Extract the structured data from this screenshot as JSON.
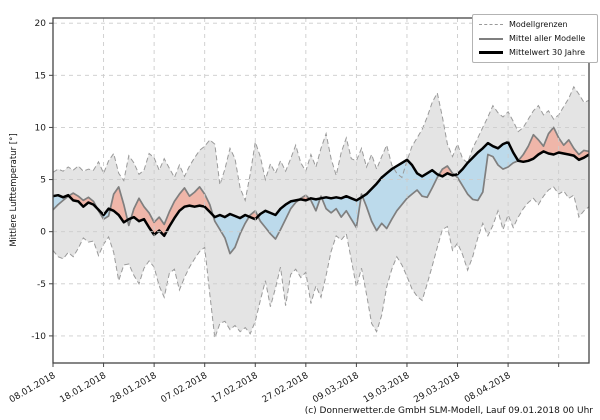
{
  "y_axis": {
    "label": "Mittlere Lufttemperatur [°]",
    "ticks": [
      -10,
      -5,
      0,
      5,
      10,
      15,
      20
    ],
    "range": [
      -12.6,
      20.5
    ]
  },
  "x_axis": {
    "tick_labels": [
      "08.01.2018",
      "18.01.2018",
      "28.01.2018",
      "07.02.2018",
      "17.02.2018",
      "27.02.2018",
      "09.03.2018",
      "19.03.2018",
      "29.03.2018",
      "08.04.2018"
    ],
    "tick_days": [
      0,
      10,
      20,
      30,
      40,
      50,
      60,
      70,
      80,
      90
    ],
    "unlabeled_gridline_days": [
      100
    ],
    "range_days": [
      0,
      106
    ]
  },
  "legend": {
    "items": [
      {
        "label": "Modellgrenzen",
        "style": "dashed-gray-line"
      },
      {
        "label": "Mittel aller Modelle",
        "style": "solid-gray-line"
      },
      {
        "label": "Mittelwert 30 Jahre",
        "style": "thick-black-line"
      }
    ]
  },
  "caption": "(c) Donnerwetter.de GmbH SLM-Modell, Lauf 09.01.2018 00 Uhr",
  "colors": {
    "band_fill": "#e4e4e4",
    "band_edge": "#9a9a9a",
    "mean_line": "#7f7f7f",
    "climate_line": "#000000",
    "warm_fill": "#f0b2a4",
    "cold_fill": "#b9d9ec",
    "grid": "#cccccc",
    "spine": "#444444",
    "tick_text": "#1a1a1a"
  },
  "chart_data": {
    "type": "line",
    "x_start_date": "08.01.2018",
    "x_step_days": 1,
    "x_days": "index 0..106 (daily)",
    "fill_rule": "red where model mean above 30-year mean, blue where below; gray band between model extremes",
    "series": [
      {
        "name": "Modellgrenzen obere Grenze",
        "values": [
          5.7,
          6.0,
          5.8,
          6.2,
          5.9,
          6.3,
          5.8,
          6.0,
          5.9,
          6.7,
          5.6,
          6.8,
          7.5,
          5.6,
          4.9,
          7.3,
          6.6,
          5.5,
          5.9,
          7.5,
          7.1,
          5.9,
          7.0,
          6.1,
          5.2,
          6.4,
          5.3,
          6.3,
          7.1,
          7.8,
          8.2,
          8.8,
          8.4,
          4.5,
          6.0,
          8.0,
          7.0,
          4.2,
          3.0,
          5.5,
          8.6,
          7.2,
          5.0,
          6.5,
          5.6,
          6.8,
          5.8,
          7.0,
          8.3,
          6.6,
          5.8,
          7.4,
          6.2,
          8.0,
          9.4,
          7.0,
          5.4,
          7.6,
          9.0,
          7.0,
          6.8,
          8.0,
          6.2,
          7.4,
          6.0,
          7.2,
          8.3,
          6.4,
          5.6,
          5.2,
          6.8,
          8.2,
          9.0,
          9.8,
          11.0,
          12.4,
          13.3,
          11.0,
          8.4,
          7.2,
          8.4,
          7.0,
          6.6,
          8.0,
          9.0,
          10.0,
          11.0,
          12.1,
          11.4,
          11.0,
          11.5,
          10.6,
          9.6,
          10.0,
          10.8,
          11.6,
          12.1,
          11.2,
          11.6,
          10.8,
          11.2,
          12.0,
          12.8,
          13.9,
          13.2,
          12.4,
          12.6
        ]
      },
      {
        "name": "Modellgrenzen untere Grenze",
        "values": [
          -1.8,
          -2.4,
          -2.6,
          -2.0,
          -2.4,
          -1.6,
          -0.6,
          -1.0,
          -0.9,
          -2.3,
          -1.2,
          -0.5,
          -2.0,
          -4.7,
          -3.2,
          -3.1,
          -4.2,
          -5.0,
          -3.5,
          -2.8,
          -3.4,
          -5.2,
          -6.3,
          -4.0,
          -3.6,
          -5.6,
          -4.4,
          -3.4,
          -2.6,
          -1.9,
          -1.5,
          -6.0,
          -10.2,
          -8.8,
          -8.6,
          -9.4,
          -9.0,
          -9.6,
          -9.2,
          -9.8,
          -8.6,
          -6.6,
          -4.7,
          -7.2,
          -5.4,
          -3.4,
          -7.1,
          -4.1,
          -3.6,
          -4.4,
          -3.9,
          -6.9,
          -5.2,
          -6.3,
          -4.2,
          -1.9,
          -0.4,
          -0.8,
          -0.2,
          -2.7,
          -5.3,
          -3.5,
          -6.0,
          -8.8,
          -9.6,
          -8.0,
          -5.3,
          -3.6,
          -2.4,
          -3.2,
          -4.3,
          -5.5,
          -6.2,
          -6.6,
          -5.0,
          -3.3,
          -1.5,
          0.2,
          0.5,
          -1.8,
          -1.1,
          -2.2,
          -3.7,
          -2.4,
          -0.6,
          0.8,
          -0.4,
          0.6,
          2.0,
          0.2,
          1.6,
          0.4,
          1.4,
          2.2,
          2.8,
          3.2,
          2.6,
          3.4,
          4.0,
          4.3,
          3.6,
          3.9,
          3.2,
          3.5,
          1.4,
          2.0,
          2.4
        ]
      },
      {
        "name": "Mittel aller Modelle",
        "values": [
          2.1,
          2.6,
          3.0,
          3.4,
          3.7,
          3.4,
          3.0,
          3.3,
          2.9,
          2.0,
          1.2,
          1.5,
          3.6,
          4.3,
          2.6,
          0.6,
          2.2,
          3.2,
          2.4,
          1.8,
          0.9,
          1.4,
          0.7,
          1.9,
          2.9,
          3.6,
          4.2,
          3.4,
          3.8,
          4.3,
          3.6,
          2.6,
          1.0,
          0.2,
          -0.6,
          -2.1,
          -1.5,
          -0.2,
          0.8,
          1.6,
          2.0,
          1.0,
          0.4,
          -0.2,
          -0.7,
          0.2,
          1.2,
          2.2,
          2.8,
          3.2,
          3.5,
          3.0,
          2.0,
          3.4,
          2.2,
          1.8,
          2.2,
          1.4,
          2.0,
          1.2,
          0.4,
          3.6,
          2.4,
          1.0,
          0.1,
          0.8,
          0.3,
          1.2,
          2.0,
          2.6,
          3.2,
          3.6,
          4.0,
          3.4,
          3.3,
          4.2,
          5.2,
          6.0,
          6.3,
          5.6,
          5.2,
          4.4,
          3.6,
          3.1,
          3.0,
          3.8,
          7.4,
          7.2,
          6.4,
          6.0,
          6.2,
          6.6,
          6.8,
          7.4,
          8.2,
          9.3,
          8.8,
          8.2,
          9.4,
          10.0,
          9.0,
          8.3,
          8.8,
          8.0,
          7.4,
          7.8,
          7.7
        ]
      },
      {
        "name": "Mittelwert 30 Jahre",
        "values": [
          3.4,
          3.5,
          3.3,
          3.5,
          3.0,
          2.9,
          2.4,
          2.8,
          2.6,
          2.1,
          1.6,
          2.2,
          2.0,
          1.6,
          0.9,
          1.2,
          1.4,
          1.0,
          1.2,
          0.4,
          -0.3,
          0.1,
          -0.4,
          0.5,
          1.3,
          2.0,
          2.4,
          2.5,
          2.4,
          2.5,
          2.4,
          1.9,
          1.4,
          1.6,
          1.4,
          1.7,
          1.5,
          1.3,
          1.6,
          1.4,
          1.2,
          1.7,
          2.0,
          1.8,
          1.6,
          2.2,
          2.6,
          2.9,
          3.0,
          3.1,
          3.0,
          3.2,
          3.1,
          3.2,
          3.3,
          3.2,
          3.3,
          3.2,
          3.4,
          3.2,
          3.0,
          3.3,
          3.6,
          4.1,
          4.6,
          5.2,
          5.6,
          6.0,
          6.3,
          6.6,
          6.9,
          6.4,
          5.6,
          5.3,
          5.6,
          5.9,
          5.5,
          5.3,
          5.6,
          5.4,
          5.5,
          6.0,
          6.6,
          7.1,
          7.6,
          8.0,
          8.5,
          8.2,
          8.0,
          8.4,
          8.6,
          7.6,
          6.8,
          6.7,
          6.8,
          7.0,
          7.4,
          7.7,
          7.5,
          7.4,
          7.6,
          7.5,
          7.4,
          7.3,
          6.9,
          7.1,
          7.4
        ]
      }
    ],
    "title": "",
    "xlabel": "",
    "ylabel": "Mittlere Lufttemperatur [°]",
    "ylim": [
      -12.6,
      20.5
    ],
    "grid": true,
    "legend_position": "upper right"
  }
}
